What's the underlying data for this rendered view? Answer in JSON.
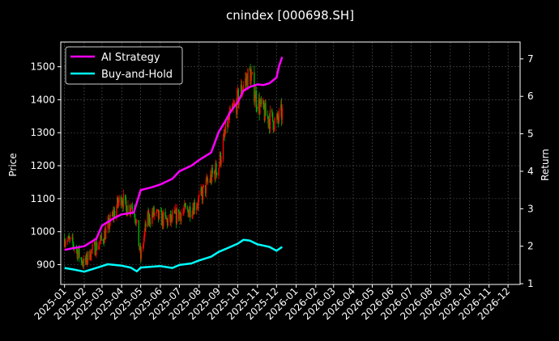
{
  "chart_data": {
    "type": "line",
    "title": "cnindex [000698.SH]",
    "ylabel": "Price",
    "y2label": "Return",
    "ylim": [
      840,
      1575
    ],
    "y2lim": [
      0.98,
      7.45
    ],
    "xlim": [
      "2024-12-26",
      "2026-12-20"
    ],
    "grid": true,
    "legend_position": "top-left",
    "y_ticks": [
      900,
      1000,
      1100,
      1200,
      1300,
      1400,
      1500
    ],
    "y2_ticks": [
      1,
      2,
      3,
      4,
      5,
      6,
      7
    ],
    "x_ticks": [
      "2025-01",
      "2025-02",
      "2025-03",
      "2025-04",
      "2025-05",
      "2025-06",
      "2025-07",
      "2025-08",
      "2025-09",
      "2025-10",
      "2025-11",
      "2025-12",
      "2026-01",
      "2026-02",
      "2026-03",
      "2026-04",
      "2026-05",
      "2026-06",
      "2026-07",
      "2026-08",
      "2026-09",
      "2026-10",
      "2026-11",
      "2026-12"
    ],
    "colors": {
      "up": "#ff0000",
      "down": "#00b000",
      "strategy": "#ff00ff",
      "buyhold": "#00ffff",
      "grid": "#555555"
    },
    "price_series": {
      "dates": [
        "2025-01-01",
        "2025-01-15",
        "2025-02-01",
        "2025-02-10",
        "2025-03-01",
        "2025-03-15",
        "2025-04-01",
        "2025-04-07",
        "2025-04-20",
        "2025-05-01",
        "2025-05-10",
        "2025-05-20",
        "2025-06-01",
        "2025-06-15",
        "2025-07-01",
        "2025-07-15",
        "2025-08-01",
        "2025-08-15",
        "2025-09-01",
        "2025-09-15",
        "2025-10-01",
        "2025-10-10",
        "2025-10-20",
        "2025-11-01",
        "2025-11-15",
        "2025-12-01",
        "2025-12-10"
      ],
      "values": [
        980,
        960,
        900,
        935,
        975,
        1035,
        1110,
        1070,
        1085,
        920,
        1030,
        1055,
        1040,
        1030,
        1055,
        1065,
        1095,
        1150,
        1200,
        1330,
        1400,
        1445,
        1480,
        1390,
        1350,
        1330,
        1360
      ]
    },
    "series": [
      {
        "name": "AI Strategy",
        "dates": [
          "2025-01-01",
          "2025-01-15",
          "2025-02-01",
          "2025-02-20",
          "2025-03-01",
          "2025-03-20",
          "2025-04-01",
          "2025-04-20",
          "2025-05-01",
          "2025-05-20",
          "2025-06-01",
          "2025-06-20",
          "2025-07-01",
          "2025-07-20",
          "2025-08-01",
          "2025-08-20",
          "2025-09-01",
          "2025-09-10",
          "2025-09-20",
          "2025-10-01",
          "2025-10-10",
          "2025-10-20",
          "2025-11-01",
          "2025-11-10",
          "2025-11-20",
          "2025-12-01",
          "2025-12-05",
          "2025-12-10"
        ],
        "values": [
          1.9,
          1.95,
          2.0,
          2.2,
          2.55,
          2.75,
          2.85,
          2.9,
          3.5,
          3.58,
          3.65,
          3.8,
          4.0,
          4.15,
          4.3,
          4.5,
          5.05,
          5.3,
          5.6,
          5.85,
          6.15,
          6.25,
          6.32,
          6.3,
          6.35,
          6.5,
          6.8,
          7.05
        ]
      },
      {
        "name": "Buy-and-Hold",
        "dates": [
          "2025-01-01",
          "2025-01-15",
          "2025-02-01",
          "2025-02-20",
          "2025-03-10",
          "2025-04-01",
          "2025-04-15",
          "2025-04-25",
          "2025-05-01",
          "2025-05-15",
          "2025-06-01",
          "2025-06-20",
          "2025-07-01",
          "2025-07-20",
          "2025-08-01",
          "2025-08-20",
          "2025-09-01",
          "2025-09-15",
          "2025-10-01",
          "2025-10-10",
          "2025-10-20",
          "2025-11-01",
          "2025-11-10",
          "2025-11-20",
          "2025-12-01",
          "2025-12-10"
        ],
        "values": [
          1.42,
          1.38,
          1.32,
          1.42,
          1.52,
          1.48,
          1.43,
          1.33,
          1.43,
          1.45,
          1.47,
          1.42,
          1.5,
          1.54,
          1.62,
          1.72,
          1.85,
          1.95,
          2.07,
          2.17,
          2.15,
          2.05,
          2.02,
          1.98,
          1.88,
          1.98
        ]
      }
    ]
  }
}
